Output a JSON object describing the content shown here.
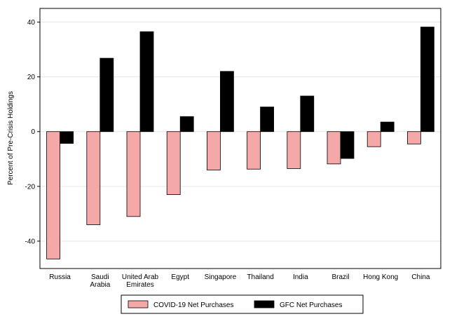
{
  "chart_data": {
    "type": "bar",
    "title": "",
    "xlabel": "",
    "ylabel": "Percent of Pre-Crisis Holdings",
    "ylim": [
      -50,
      45
    ],
    "yticks": [
      40,
      20,
      0,
      -20,
      -40
    ],
    "grid": true,
    "legend_position": "bottom",
    "categories": [
      [
        "Russia"
      ],
      [
        "Saudi",
        "Arabia"
      ],
      [
        "United Arab",
        "Emirates"
      ],
      [
        "Egypt"
      ],
      [
        "Singapore"
      ],
      [
        "Thailand"
      ],
      [
        "India"
      ],
      [
        "Brazil"
      ],
      [
        "Hong Kong"
      ],
      [
        "China"
      ]
    ],
    "series": [
      {
        "name": "COVID-19 Net Purchases",
        "color": "#f4a9a8",
        "values": [
          -46.5,
          -34,
          -31,
          -23,
          -14,
          -13.7,
          -13.5,
          -11.8,
          -5.5,
          -4.5
        ]
      },
      {
        "name": "GFC Net Purchases",
        "color": "#000000",
        "values": [
          -4.3,
          26.8,
          36.5,
          5.5,
          22,
          9,
          13,
          -9.8,
          3.5,
          38.2
        ]
      }
    ]
  }
}
